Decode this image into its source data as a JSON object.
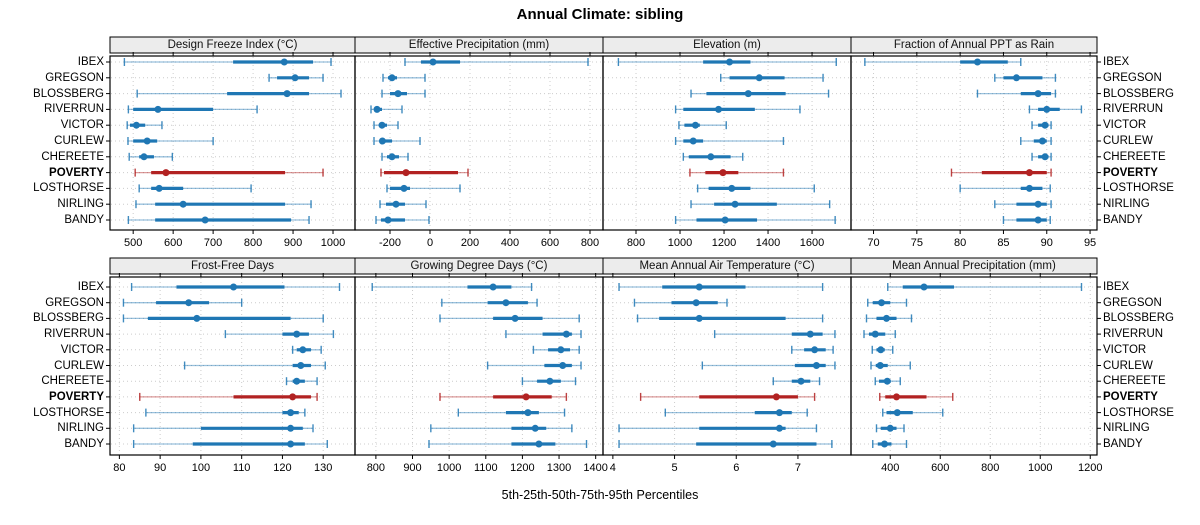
{
  "title": "Annual Climate: sibling",
  "caption": "5th-25th-50th-75th-95th Percentiles",
  "colors": {
    "series_blue": "#1f77b4",
    "highlight_red": "#b22222",
    "grid": "#cccccc",
    "strip_bg": "#ececec",
    "panel_border": "#000000"
  },
  "chart_data": {
    "type": "dotplot-with-percentile-whiskers",
    "percentiles": [
      5,
      25,
      50,
      75,
      95
    ],
    "categories": [
      "IBEX",
      "GREGSON",
      "BLOSSBERG",
      "RIVERRUN",
      "VICTOR",
      "CURLEW",
      "CHEREETE",
      "POVERTY",
      "LOSTHORSE",
      "NIRLING",
      "BANDY"
    ],
    "highlight_site": "POVERTY",
    "legend_position": "none",
    "grid": "dotted",
    "panels": [
      {
        "title": "Design Freeze Index (°C)",
        "xlim": [
          442,
          1055
        ],
        "ticks": [
          500,
          600,
          700,
          800,
          900,
          1000
        ],
        "series": {
          "IBEX": [
            478,
            750,
            878,
            950,
            995
          ],
          "GREGSON": [
            840,
            860,
            905,
            940,
            975
          ],
          "BLOSSBERG": [
            510,
            735,
            885,
            940,
            1020
          ],
          "RIVERRUN": [
            488,
            500,
            562,
            700,
            810
          ],
          "VICTOR": [
            485,
            492,
            508,
            530,
            572
          ],
          "CURLEW": [
            487,
            500,
            535,
            560,
            700
          ],
          "CHEREETE": [
            490,
            515,
            527,
            552,
            598
          ],
          "POVERTY": [
            505,
            545,
            582,
            880,
            975
          ],
          "LOSTHORSE": [
            515,
            545,
            565,
            625,
            795
          ],
          "NIRLING": [
            507,
            555,
            625,
            880,
            945
          ],
          "BANDY": [
            488,
            555,
            680,
            895,
            940
          ]
        }
      },
      {
        "title": "Effective Precipitation (mm)",
        "xlim": [
          -375,
          865
        ],
        "ticks": [
          -200,
          0,
          200,
          400,
          600,
          800
        ],
        "series": {
          "IBEX": [
            -125,
            -45,
            15,
            150,
            790
          ],
          "GREGSON": [
            -235,
            -210,
            -190,
            -165,
            -25
          ],
          "BLOSSBERG": [
            -240,
            -200,
            -160,
            -115,
            -25
          ],
          "RIVERRUN": [
            -295,
            -280,
            -265,
            -240,
            -140
          ],
          "VICTOR": [
            -280,
            -255,
            -240,
            -215,
            -160
          ],
          "CURLEW": [
            -280,
            -250,
            -238,
            -190,
            -50
          ],
          "CHEREETE": [
            -240,
            -215,
            -190,
            -155,
            -110
          ],
          "POVERTY": [
            -245,
            -230,
            -120,
            140,
            190
          ],
          "LOSTHORSE": [
            -215,
            -200,
            -130,
            -100,
            150
          ],
          "NIRLING": [
            -250,
            -220,
            -170,
            -125,
            -20
          ],
          "BANDY": [
            -270,
            -245,
            -210,
            -125,
            -5
          ]
        }
      },
      {
        "title": "Elevation (m)",
        "xlim": [
          650,
          1777
        ],
        "ticks": [
          800,
          1000,
          1200,
          1400,
          1600
        ],
        "series": {
          "IBEX": [
            720,
            1105,
            1225,
            1320,
            1710
          ],
          "GREGSON": [
            1185,
            1225,
            1360,
            1475,
            1650
          ],
          "BLOSSBERG": [
            1050,
            1120,
            1310,
            1480,
            1675
          ],
          "RIVERRUN": [
            980,
            1015,
            1175,
            1340,
            1545
          ],
          "VICTOR": [
            995,
            1020,
            1070,
            1090,
            1210
          ],
          "CURLEW": [
            980,
            1015,
            1060,
            1105,
            1470
          ],
          "CHEREETE": [
            1015,
            1040,
            1140,
            1230,
            1285
          ],
          "POVERTY": [
            1045,
            1115,
            1195,
            1265,
            1470
          ],
          "LOSTHORSE": [
            1080,
            1130,
            1235,
            1320,
            1610
          ],
          "NIRLING": [
            1050,
            1155,
            1250,
            1440,
            1680
          ],
          "BANDY": [
            980,
            1075,
            1205,
            1350,
            1705
          ]
        }
      },
      {
        "title": "Fraction of Annual PPT as Rain",
        "xlim": [
          67.4,
          95.8
        ],
        "ticks": [
          70,
          75,
          80,
          85,
          90,
          95
        ],
        "series": {
          "IBEX": [
            69,
            80,
            82,
            85.5,
            87
          ],
          "GREGSON": [
            84,
            85,
            86.5,
            89.5,
            91
          ],
          "BLOSSBERG": [
            82,
            87,
            89,
            90.5,
            91
          ],
          "RIVERRUN": [
            88,
            89,
            90,
            91.5,
            94
          ],
          "VICTOR": [
            88.3,
            89,
            89.8,
            90.2,
            90.5
          ],
          "CURLEW": [
            87,
            88.5,
            89.5,
            90,
            90.5
          ],
          "CHEREETE": [
            88.3,
            89,
            89.8,
            90.2,
            90.5
          ],
          "POVERTY": [
            79,
            82.5,
            88,
            90,
            90.5
          ],
          "LOSTHORSE": [
            80,
            87,
            88,
            89.5,
            90.4
          ],
          "NIRLING": [
            84,
            86.5,
            89,
            90,
            90.5
          ],
          "BANDY": [
            85,
            86.5,
            89,
            90,
            90.4
          ]
        }
      },
      {
        "title": "Frost-Free Days",
        "xlim": [
          77.7,
          137.8
        ],
        "ticks": [
          80,
          90,
          100,
          110,
          120,
          130
        ],
        "series": {
          "IBEX": [
            83,
            94,
            108,
            120.5,
            134
          ],
          "GREGSON": [
            81,
            89,
            97,
            102,
            110
          ],
          "BLOSSBERG": [
            81,
            87,
            99,
            122,
            130
          ],
          "RIVERRUN": [
            106,
            120,
            123.5,
            126.5,
            132.5
          ],
          "VICTOR": [
            122.5,
            123.5,
            125,
            127,
            129.5
          ],
          "CURLEW": [
            96,
            122.5,
            124.5,
            127,
            130.5
          ],
          "CHEREETE": [
            121,
            122.5,
            123.5,
            125.5,
            128.5
          ],
          "POVERTY": [
            85,
            108,
            122.5,
            127,
            128.5
          ],
          "LOSTHORSE": [
            86.5,
            120,
            122,
            124,
            125.5
          ],
          "NIRLING": [
            83.5,
            100,
            122,
            125,
            127.5
          ],
          "BANDY": [
            83.5,
            98,
            122,
            125.5,
            131
          ]
        }
      },
      {
        "title": "Growing Degree Days (°C)",
        "xlim": [
          743,
          1420
        ],
        "ticks": [
          800,
          900,
          1000,
          1100,
          1200,
          1300,
          1400
        ],
        "series": {
          "IBEX": [
            790,
            1050,
            1120,
            1170,
            1225
          ],
          "GREGSON": [
            980,
            1105,
            1155,
            1215,
            1240
          ],
          "BLOSSBERG": [
            975,
            1120,
            1180,
            1255,
            1355
          ],
          "RIVERRUN": [
            1155,
            1255,
            1320,
            1335,
            1360
          ],
          "VICTOR": [
            1230,
            1270,
            1305,
            1330,
            1355
          ],
          "CURLEW": [
            1105,
            1260,
            1310,
            1335,
            1360
          ],
          "CHEREETE": [
            1200,
            1240,
            1275,
            1305,
            1345
          ],
          "POVERTY": [
            975,
            1120,
            1210,
            1280,
            1320
          ],
          "LOSTHORSE": [
            1025,
            1155,
            1215,
            1245,
            1315
          ],
          "NIRLING": [
            950,
            1170,
            1235,
            1265,
            1335
          ],
          "BANDY": [
            945,
            1170,
            1245,
            1290,
            1375
          ]
        }
      },
      {
        "title": "Mean Annual Air Temperature (°C)",
        "xlim": [
          3.84,
          7.86
        ],
        "ticks": [
          4,
          5,
          6,
          7
        ],
        "series": {
          "IBEX": [
            4.1,
            4.8,
            5.4,
            6.15,
            7.4
          ],
          "GREGSON": [
            4.35,
            4.95,
            5.35,
            5.7,
            5.85
          ],
          "BLOSSBERG": [
            4.4,
            4.75,
            5.4,
            6.8,
            7.4
          ],
          "RIVERRUN": [
            5.65,
            6.9,
            7.2,
            7.4,
            7.6
          ],
          "VICTOR": [
            6.9,
            7.1,
            7.27,
            7.45,
            7.57
          ],
          "CURLEW": [
            5.45,
            6.95,
            7.3,
            7.45,
            7.6
          ],
          "CHEREETE": [
            6.6,
            6.9,
            7.05,
            7.2,
            7.35
          ],
          "POVERTY": [
            4.45,
            5.4,
            6.65,
            7.0,
            7.27
          ],
          "LOSTHORSE": [
            4.85,
            6.3,
            6.7,
            6.9,
            7.15
          ],
          "NIRLING": [
            4.1,
            5.4,
            6.7,
            6.8,
            7.3
          ],
          "BANDY": [
            4.1,
            5.35,
            6.6,
            7.3,
            7.55
          ]
        }
      },
      {
        "title": "Mean Annual Precipitation (mm)",
        "xlim": [
          243,
          1227
        ],
        "ticks": [
          400,
          600,
          800,
          1000,
          1200
        ],
        "series": {
          "IBEX": [
            390,
            450,
            535,
            655,
            1165
          ],
          "GREGSON": [
            310,
            330,
            365,
            400,
            465
          ],
          "BLOSSBERG": [
            305,
            345,
            385,
            425,
            485
          ],
          "RIVERRUN": [
            295,
            315,
            340,
            380,
            420
          ],
          "VICTOR": [
            328,
            345,
            362,
            378,
            410
          ],
          "CURLEW": [
            323,
            342,
            360,
            390,
            480
          ],
          "CHEREETE": [
            340,
            355,
            388,
            402,
            440
          ],
          "POVERTY": [
            358,
            380,
            425,
            545,
            650
          ],
          "LOSTHORSE": [
            370,
            385,
            428,
            490,
            610
          ],
          "NIRLING": [
            345,
            362,
            400,
            425,
            455
          ],
          "BANDY": [
            330,
            350,
            377,
            405,
            465
          ]
        }
      }
    ]
  }
}
